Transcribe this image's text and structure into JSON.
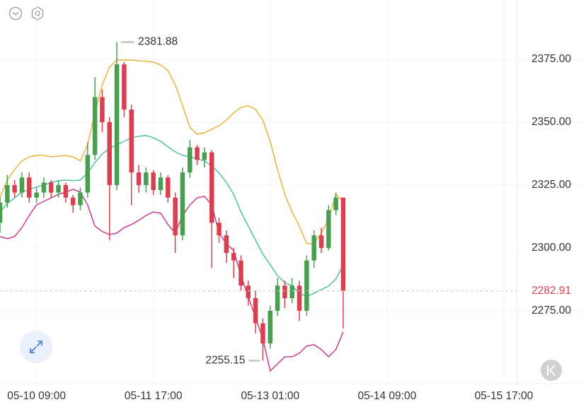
{
  "chart_data": {
    "type": "candlestick",
    "x": [
      "05-09 23:00",
      "05-10 01:00",
      "05-10 03:00",
      "05-10 05:00",
      "05-10 07:00",
      "05-10 09:00",
      "05-10 11:00",
      "05-10 13:00",
      "05-10 15:00",
      "05-10 17:00",
      "05-10 19:00",
      "05-10 21:00",
      "05-10 23:00",
      "05-11 01:00",
      "05-11 03:00",
      "05-11 05:00",
      "05-11 07:00",
      "05-11 09:00",
      "05-11 11:00",
      "05-11 13:00",
      "05-11 15:00",
      "05-11 17:00",
      "05-11 19:00",
      "05-11 21:00",
      "05-11 23:00",
      "05-12 01:00",
      "05-12 03:00",
      "05-12 05:00",
      "05-12 07:00",
      "05-12 09:00",
      "05-12 11:00",
      "05-12 13:00",
      "05-12 15:00",
      "05-12 17:00",
      "05-12 19:00",
      "05-12 21:00",
      "05-12 23:00",
      "05-13 01:00",
      "05-13 03:00",
      "05-13 05:00",
      "05-13 07:00",
      "05-13 09:00",
      "05-13 11:00",
      "05-13 13:00",
      "05-13 15:00",
      "05-13 17:00",
      "05-13 19:00",
      "05-13 21:00"
    ],
    "open": [
      2310,
      2318,
      2325,
      2322,
      2328,
      2320,
      2322,
      2326,
      2322,
      2325,
      2320,
      2317,
      2322,
      2337,
      2360,
      2350,
      2325,
      2373,
      2355,
      2330,
      2325,
      2330,
      2323,
      2328,
      2320,
      2305,
      2330,
      2340,
      2335,
      2338,
      2310,
      2305,
      2298,
      2295,
      2285,
      2280,
      2270,
      2262,
      2275,
      2285,
      2280,
      2285,
      2275,
      2295,
      2305,
      2300,
      2315,
      2320
    ],
    "high": [
      2320,
      2329,
      2327,
      2330,
      2330,
      2324,
      2328,
      2327,
      2327,
      2326,
      2321,
      2324,
      2342,
      2368,
      2363,
      2352,
      2381.88,
      2374,
      2357,
      2333,
      2332,
      2331,
      2330,
      2329,
      2322,
      2332,
      2343,
      2341,
      2340,
      2339,
      2312,
      2307,
      2300,
      2297,
      2287,
      2283,
      2272,
      2277,
      2288,
      2287,
      2288,
      2287,
      2297,
      2307,
      2308,
      2317,
      2322,
      2320
    ],
    "low": [
      2306,
      2316,
      2320,
      2320,
      2318,
      2318,
      2320,
      2320,
      2320,
      2318,
      2314,
      2315,
      2320,
      2335,
      2346,
      2303,
      2323,
      2352,
      2317,
      2322,
      2322,
      2321,
      2321,
      2318,
      2298,
      2303,
      2328,
      2333,
      2332,
      2292,
      2302,
      2294,
      2288,
      2283,
      2277,
      2266,
      2255.15,
      2260,
      2273,
      2276,
      2278,
      2271,
      2273,
      2292,
      2298,
      2299,
      2313,
      2268
    ],
    "close": [
      2318,
      2325,
      2322,
      2328,
      2320,
      2322,
      2326,
      2322,
      2325,
      2320,
      2317,
      2322,
      2337,
      2360,
      2350,
      2325,
      2373,
      2355,
      2330,
      2325,
      2330,
      2323,
      2328,
      2320,
      2305,
      2330,
      2340,
      2335,
      2338,
      2310,
      2305,
      2298,
      2295,
      2285,
      2280,
      2270,
      2262,
      2275,
      2285,
      2280,
      2285,
      2275,
      2295,
      2305,
      2300,
      2315,
      2320,
      2282.91
    ],
    "up_color": "#4a9e4f",
    "down_color": "#d9404f",
    "bands": [
      {
        "color": "#e8b43a",
        "values": [
          2320.1,
          2327.0,
          2331.2,
          2334.6,
          2336.2,
          2336.8,
          2336.8,
          2336.2,
          2336.5,
          2336.8,
          2336.2,
          2334.6,
          2341.0,
          2353.7,
          2364.9,
          2371.9,
          2374.7,
          2374.7,
          2374.7,
          2374.4,
          2374.2,
          2373.9,
          2372.8,
          2370.5,
          2364.9,
          2356.5,
          2348.0,
          2345.2,
          2345.8,
          2347.2,
          2348.6,
          2350.8,
          2353.7,
          2355.9,
          2356.5,
          2355.1,
          2350.8,
          2342.4,
          2331.2,
          2321.3,
          2314.3,
          2308.7,
          2301.7,
          2301.7,
          2305.9,
          2311.5,
          2321.3,
          2318.5
        ]
      },
      {
        "color": "#4cc3a3",
        "values": [
          2314.3,
          2317.7,
          2319.9,
          2322.2,
          2323.3,
          2324.2,
          2325.0,
          2326.1,
          2326.7,
          2327.0,
          2326.7,
          2327.0,
          2329.8,
          2334.0,
          2337.4,
          2339.6,
          2341.0,
          2342.4,
          2343.8,
          2344.4,
          2344.7,
          2343.8,
          2342.4,
          2340.2,
          2338.2,
          2336.8,
          2336.2,
          2335.4,
          2334.6,
          2332.6,
          2329.8,
          2326.1,
          2321.3,
          2314.3,
          2308.7,
          2303.1,
          2297.5,
          2293.3,
          2289.0,
          2286.2,
          2284.8,
          2282.0,
          2280.6,
          2282.0,
          2283.4,
          2284.8,
          2287.6,
          2293.3
        ]
      },
      {
        "color": "#c93c8e",
        "values": [
          2304.5,
          2303.7,
          2304.5,
          2308.1,
          2312.9,
          2317.1,
          2318.5,
          2319.9,
          2321.3,
          2322.2,
          2323.3,
          2322.2,
          2317.1,
          2308.7,
          2306.5,
          2305.3,
          2305.9,
          2308.1,
          2309.3,
          2311.0,
          2312.9,
          2314.3,
          2313.8,
          2309.3,
          2305.9,
          2312.9,
          2317.1,
          2319.9,
          2320.5,
          2317.1,
          2305.9,
          2301.7,
          2298.9,
          2289.0,
          2280.6,
          2272.2,
          2263.8,
          2251.1,
          2253.9,
          2256.7,
          2256.7,
          2258.1,
          2261.0,
          2261.5,
          2259.6,
          2256.7,
          2259.6,
          2266.6
        ]
      }
    ],
    "xlim": [
      "05-09 23:00",
      "05-15 20:30"
    ],
    "xticks": [
      "05-10 09:00",
      "05-11 17:00",
      "05-13 01:00",
      "05-14 09:00",
      "05-15 17:00"
    ],
    "ylim": [
      2246,
      2398.6
    ],
    "yticks": [
      {
        "value": 2275,
        "label": "2275.00"
      },
      {
        "value": 2300,
        "label": "2300.00"
      },
      {
        "value": 2325,
        "label": "2325.00"
      },
      {
        "value": 2350,
        "label": "2350.00"
      },
      {
        "value": 2375,
        "label": "2375.00"
      }
    ],
    "grid": true,
    "annotations": {
      "high": 2381.88,
      "low": 2255.15,
      "last": 2282.91
    }
  }
}
